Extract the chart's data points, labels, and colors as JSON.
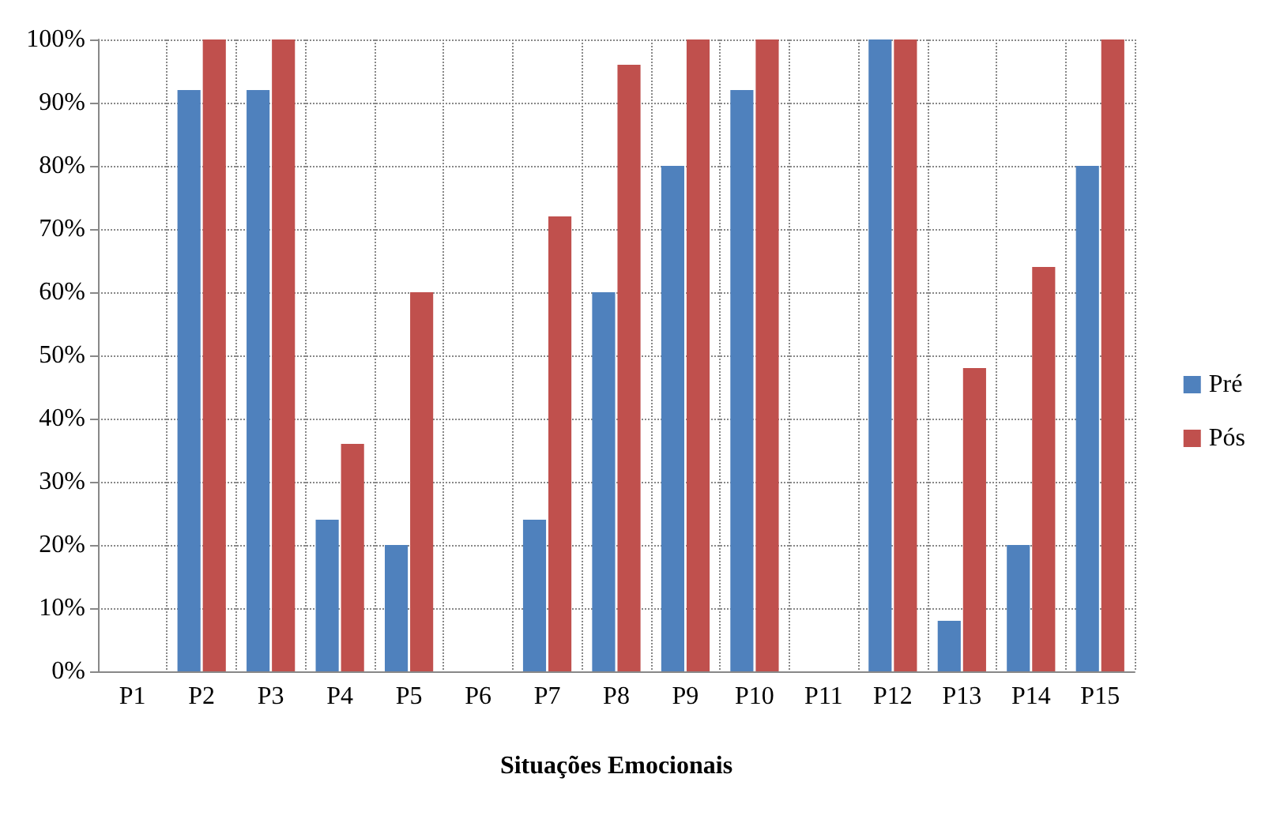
{
  "chart_data": {
    "type": "bar",
    "xlabel": "Situações Emocionais",
    "categories": [
      "P1",
      "P2",
      "P3",
      "P4",
      "P5",
      "P6",
      "P7",
      "P8",
      "P9",
      "P10",
      "P11",
      "P12",
      "P13",
      "P14",
      "P15"
    ],
    "series": [
      {
        "name": "Pré",
        "color": "#4f81bd",
        "values": [
          0,
          92,
          92,
          24,
          20,
          0,
          24,
          60,
          80,
          92,
          0,
          100,
          8,
          20,
          80
        ]
      },
      {
        "name": "Pós",
        "color": "#c0504d",
        "values": [
          0,
          100,
          100,
          36,
          60,
          0,
          72,
          96,
          100,
          100,
          0,
          100,
          48,
          64,
          100
        ]
      }
    ],
    "ylim": [
      0,
      100
    ],
    "yticks": [
      {
        "value": 0,
        "label": "0%"
      },
      {
        "value": 10,
        "label": "10%"
      },
      {
        "value": 20,
        "label": "20%"
      },
      {
        "value": 30,
        "label": "30%"
      },
      {
        "value": 40,
        "label": "40%"
      },
      {
        "value": 50,
        "label": "50%"
      },
      {
        "value": 60,
        "label": "60%"
      },
      {
        "value": 70,
        "label": "70%"
      },
      {
        "value": 80,
        "label": "80%"
      },
      {
        "value": 90,
        "label": "90%"
      },
      {
        "value": 100,
        "label": "100%"
      }
    ],
    "grid": true,
    "legend": "right"
  }
}
